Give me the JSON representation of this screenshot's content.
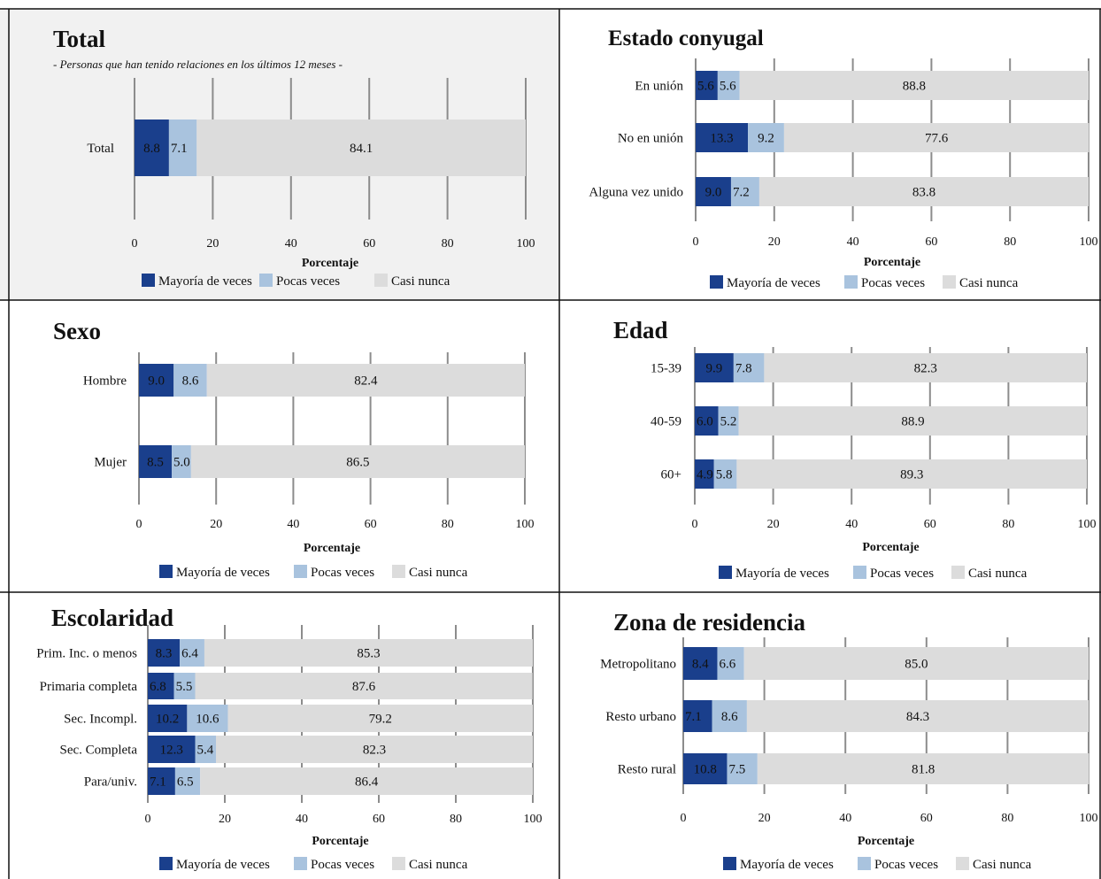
{
  "colors": {
    "mayoria": "#1a3f8c",
    "pocas": "#a9c3de",
    "casi": "#dcdcdc",
    "panel_bg_total": "#f1f1f1",
    "grid": "#8c8c8c",
    "label_on_dark": "#ffffff",
    "label_on_light": "#111111"
  },
  "legend": [
    "Mayoría de veces",
    "Pocas veces",
    "Casi nunca"
  ],
  "chart_data": [
    {
      "type": "bar",
      "orientation": "horizontal",
      "stacked": true,
      "title": "Total",
      "subtitle": "- Personas que han tenido relaciones en los últimos 12 meses -",
      "xlabel": "Porcentaje",
      "xlim": [
        0,
        100
      ],
      "xticks": [
        0,
        20,
        40,
        60,
        80,
        100
      ],
      "categories": [
        "Total"
      ],
      "series": [
        {
          "name": "Mayoría de veces",
          "values": [
            8.8
          ],
          "labels": [
            "8.8"
          ]
        },
        {
          "name": "Pocas veces",
          "values": [
            7.1
          ],
          "labels": [
            "7.1"
          ]
        },
        {
          "name": "Casi nunca",
          "values": [
            84.1
          ],
          "labels": [
            "84.1"
          ]
        }
      ],
      "legend_position": "bottom"
    },
    {
      "type": "bar",
      "orientation": "horizontal",
      "stacked": true,
      "title": "Estado conyugal",
      "xlabel": "Porcentaje",
      "xlim": [
        0,
        100
      ],
      "xticks": [
        0,
        20,
        40,
        60,
        80,
        100
      ],
      "categories": [
        "En unión",
        "No en unión",
        "Alguna vez unido"
      ],
      "series": [
        {
          "name": "Mayoría de veces",
          "values": [
            5.6,
            13.3,
            9.0
          ],
          "labels": [
            "5.6",
            "13.3",
            "9.0"
          ]
        },
        {
          "name": "Pocas veces",
          "values": [
            5.6,
            9.2,
            7.2
          ],
          "labels": [
            "5.6",
            "9.2",
            "7.2"
          ]
        },
        {
          "name": "Casi nunca",
          "values": [
            88.8,
            77.6,
            83.8
          ],
          "labels": [
            "88.8",
            "77.6",
            "83.8"
          ]
        }
      ],
      "legend_position": "bottom"
    },
    {
      "type": "bar",
      "orientation": "horizontal",
      "stacked": true,
      "title": "Sexo",
      "xlabel": "Porcentaje",
      "xlim": [
        0,
        100
      ],
      "xticks": [
        0,
        20,
        40,
        60,
        80,
        100
      ],
      "categories": [
        "Hombre",
        "Mujer"
      ],
      "series": [
        {
          "name": "Mayoría de veces",
          "values": [
            9.0,
            8.5
          ],
          "labels": [
            "9.0",
            "8.5"
          ]
        },
        {
          "name": "Pocas veces",
          "values": [
            8.6,
            5.0
          ],
          "labels": [
            "8.6",
            "5.0"
          ]
        },
        {
          "name": "Casi nunca",
          "values": [
            82.4,
            86.5
          ],
          "labels": [
            "82.4",
            "86.5"
          ]
        }
      ],
      "legend_position": "bottom"
    },
    {
      "type": "bar",
      "orientation": "horizontal",
      "stacked": true,
      "title": "Edad",
      "xlabel": "Porcentaje",
      "xlim": [
        0,
        100
      ],
      "xticks": [
        0,
        20,
        40,
        60,
        80,
        100
      ],
      "categories": [
        "15-39",
        "40-59",
        "60+"
      ],
      "series": [
        {
          "name": "Mayoría de veces",
          "values": [
            9.9,
            6.0,
            4.9
          ],
          "labels": [
            "9.9",
            "6.0",
            "4.9"
          ]
        },
        {
          "name": "Pocas veces",
          "values": [
            7.8,
            5.2,
            5.8
          ],
          "labels": [
            "7.8",
            "5.2",
            "5.8"
          ]
        },
        {
          "name": "Casi nunca",
          "values": [
            82.3,
            88.9,
            89.3
          ],
          "labels": [
            "82.3",
            "88.9",
            "89.3"
          ]
        }
      ],
      "legend_position": "bottom"
    },
    {
      "type": "bar",
      "orientation": "horizontal",
      "stacked": true,
      "title": "Escolaridad",
      "xlabel": "Porcentaje",
      "xlim": [
        0,
        100
      ],
      "xticks": [
        0,
        20,
        40,
        60,
        80,
        100
      ],
      "categories": [
        "Prim. Inc. o menos",
        "Primaria completa",
        "Sec. Incompl.",
        "Sec. Completa",
        "Para/univ."
      ],
      "series": [
        {
          "name": "Mayoría de veces",
          "values": [
            8.3,
            6.8,
            10.2,
            12.3,
            7.1
          ],
          "labels": [
            "8.3",
            "6.8",
            "10.2",
            "12.3",
            "7.1"
          ]
        },
        {
          "name": "Pocas veces",
          "values": [
            6.4,
            5.5,
            10.6,
            5.4,
            6.5
          ],
          "labels": [
            "6.4",
            "5.5",
            "10.6",
            "5.4",
            "6.5"
          ]
        },
        {
          "name": "Casi nunca",
          "values": [
            85.3,
            87.6,
            79.2,
            82.3,
            86.4
          ],
          "labels": [
            "85.3",
            "87.6",
            "79.2",
            "82.3",
            "86.4"
          ]
        }
      ],
      "legend_position": "bottom"
    },
    {
      "type": "bar",
      "orientation": "horizontal",
      "stacked": true,
      "title": "Zona de residencia",
      "xlabel": "Porcentaje",
      "xlim": [
        0,
        100
      ],
      "xticks": [
        0,
        20,
        40,
        60,
        80,
        100
      ],
      "categories": [
        "Metropolitano",
        "Resto urbano",
        "Resto rural"
      ],
      "series": [
        {
          "name": "Mayoría de veces",
          "values": [
            8.4,
            7.1,
            10.8
          ],
          "labels": [
            "8.4",
            "7.1",
            "10.8"
          ]
        },
        {
          "name": "Pocas veces",
          "values": [
            6.6,
            8.6,
            7.5
          ],
          "labels": [
            "6.6",
            "8.6",
            "7.5"
          ]
        },
        {
          "name": "Casi nunca",
          "values": [
            85.0,
            84.3,
            81.8
          ],
          "labels": [
            "85.0",
            "84.3",
            "81.8"
          ]
        }
      ],
      "legend_position": "bottom"
    }
  ]
}
